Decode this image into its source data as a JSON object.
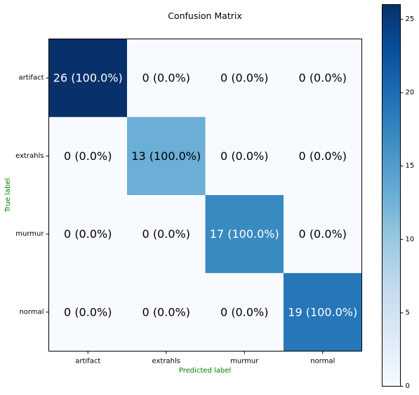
{
  "chart_data": {
    "type": "heatmap",
    "title": "Confusion Matrix",
    "xlabel": "Predicted label",
    "ylabel": "True label",
    "x_categories": [
      "artifact",
      "extrahls",
      "murmur",
      "normal"
    ],
    "y_categories": [
      "artifact",
      "extrahls",
      "murmur",
      "normal"
    ],
    "values": [
      [
        26,
        0,
        0,
        0
      ],
      [
        0,
        13,
        0,
        0
      ],
      [
        0,
        0,
        17,
        0
      ],
      [
        0,
        0,
        0,
        19
      ]
    ],
    "cell_labels": [
      [
        "26 (100.0%)",
        "0 (0.0%)",
        "0 (0.0%)",
        "0 (0.0%)"
      ],
      [
        "0 (0.0%)",
        "13 (100.0%)",
        "0 (0.0%)",
        "0 (0.0%)"
      ],
      [
        "0 (0.0%)",
        "0 (0.0%)",
        "17 (100.0%)",
        "0 (0.0%)"
      ],
      [
        "0 (0.0%)",
        "0 (0.0%)",
        "0 (0.0%)",
        "19 (100.0%)"
      ]
    ],
    "colormap": "Blues",
    "colorbar": {
      "range": [
        0,
        26
      ],
      "ticks": [
        "0",
        "5",
        "10",
        "15",
        "20",
        "25"
      ]
    },
    "label_color": "#008000",
    "grid": false
  }
}
